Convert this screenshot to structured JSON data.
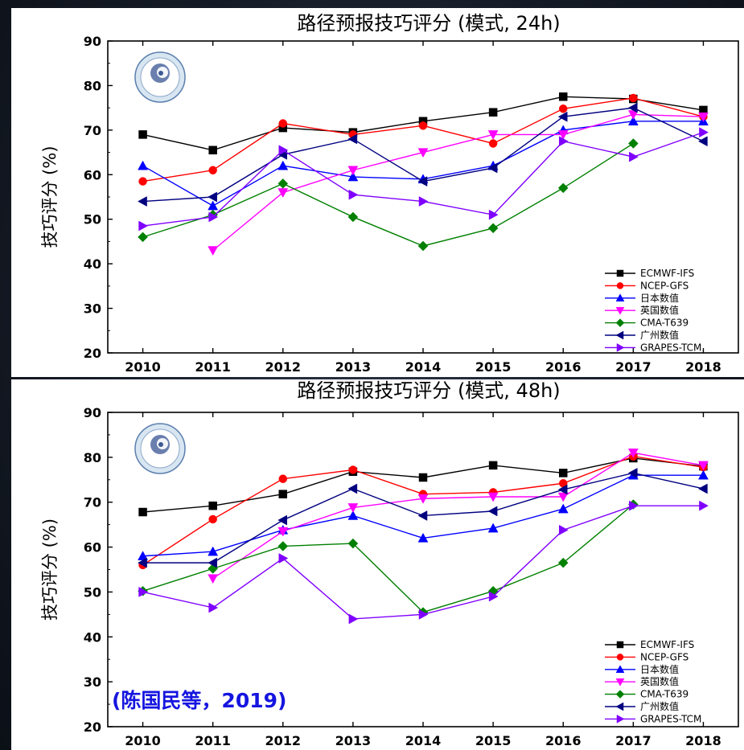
{
  "chart_data": [
    {
      "type": "line",
      "title": "路径预报技巧评分 (模式, 24h)",
      "ylabel": "技巧评分 (%)",
      "xlabel": "",
      "x": [
        2010,
        2011,
        2012,
        2013,
        2014,
        2015,
        2016,
        2017,
        2018
      ],
      "yticks": [
        20,
        30,
        40,
        50,
        60,
        70,
        80,
        90
      ],
      "ylim": [
        20,
        90
      ],
      "legend_position": "bottom-right",
      "grid": false,
      "series": [
        {
          "name": "ECMWF-IFS",
          "color": "#000000",
          "marker": "square",
          "values": [
            69,
            65.5,
            70.5,
            69.5,
            72,
            74,
            77.5,
            77,
            74.5
          ]
        },
        {
          "name": "NCEP-GFS",
          "color": "#ff0000",
          "marker": "circle",
          "values": [
            58.5,
            61,
            71.5,
            69,
            71,
            67,
            74.8,
            77.2,
            73
          ]
        },
        {
          "name": "日本数值",
          "color": "#0000ff",
          "marker": "triangle-up",
          "values": [
            62,
            53,
            62,
            59.5,
            59,
            62,
            70,
            72,
            72
          ]
        },
        {
          "name": "英国数值",
          "color": "#ff00ff",
          "marker": "triangle-down",
          "values": [
            null,
            43,
            56,
            61,
            65,
            69,
            69,
            73.5,
            73
          ]
        },
        {
          "name": "CMA-T639",
          "color": "#008000",
          "marker": "diamond",
          "values": [
            46,
            51,
            58,
            50.5,
            44,
            48,
            57,
            67,
            null
          ]
        },
        {
          "name": "广州数值",
          "color": "#000080",
          "marker": "triangle-left",
          "values": [
            54,
            55,
            64.5,
            68,
            58.5,
            61.5,
            73,
            75,
            67.5
          ]
        },
        {
          "name": "GRAPES-TCM",
          "color": "#8000ff",
          "marker": "triangle-right",
          "values": [
            48.5,
            50.5,
            65.5,
            55.5,
            54,
            51,
            67.5,
            64,
            69.5
          ]
        }
      ]
    },
    {
      "type": "line",
      "title": "路径预报技巧评分 (模式, 48h)",
      "ylabel": "技巧评分 (%)",
      "xlabel": "",
      "x": [
        2010,
        2011,
        2012,
        2013,
        2014,
        2015,
        2016,
        2017,
        2018
      ],
      "yticks": [
        20,
        30,
        40,
        50,
        60,
        70,
        80,
        90
      ],
      "ylim": [
        20,
        90
      ],
      "legend_position": "bottom-right",
      "grid": false,
      "annotation": "(陈国民等，2019)",
      "series": [
        {
          "name": "ECMWF-IFS",
          "color": "#000000",
          "marker": "square",
          "values": [
            67.8,
            69.2,
            71.8,
            76.8,
            75.5,
            78.2,
            76.5,
            79.8,
            78
          ]
        },
        {
          "name": "NCEP-GFS",
          "color": "#ff0000",
          "marker": "circle",
          "values": [
            56,
            66.2,
            75.2,
            77.2,
            71.8,
            72.2,
            74.2,
            80.2,
            77.8
          ]
        },
        {
          "name": "日本数值",
          "color": "#0000ff",
          "marker": "triangle-up",
          "values": [
            58,
            59,
            63.8,
            67,
            62,
            64.2,
            68.5,
            76,
            76
          ]
        },
        {
          "name": "英国数值",
          "color": "#ff00ff",
          "marker": "triangle-down",
          "values": [
            null,
            53,
            63.5,
            68.8,
            70.8,
            71.2,
            71.2,
            81,
            78.2
          ]
        },
        {
          "name": "CMA-T639",
          "color": "#008000",
          "marker": "diamond",
          "values": [
            50.2,
            55.2,
            60.2,
            60.8,
            45.5,
            50.2,
            56.5,
            69.5,
            null
          ]
        },
        {
          "name": "广州数值",
          "color": "#000080",
          "marker": "triangle-left",
          "values": [
            56.5,
            56.5,
            66,
            73,
            67,
            68,
            72.8,
            76.5,
            73
          ]
        },
        {
          "name": "GRAPES-TCM",
          "color": "#8000ff",
          "marker": "triangle-right",
          "values": [
            50,
            46.5,
            57.5,
            44,
            45,
            49,
            63.8,
            69.2,
            69.2
          ]
        }
      ]
    }
  ]
}
